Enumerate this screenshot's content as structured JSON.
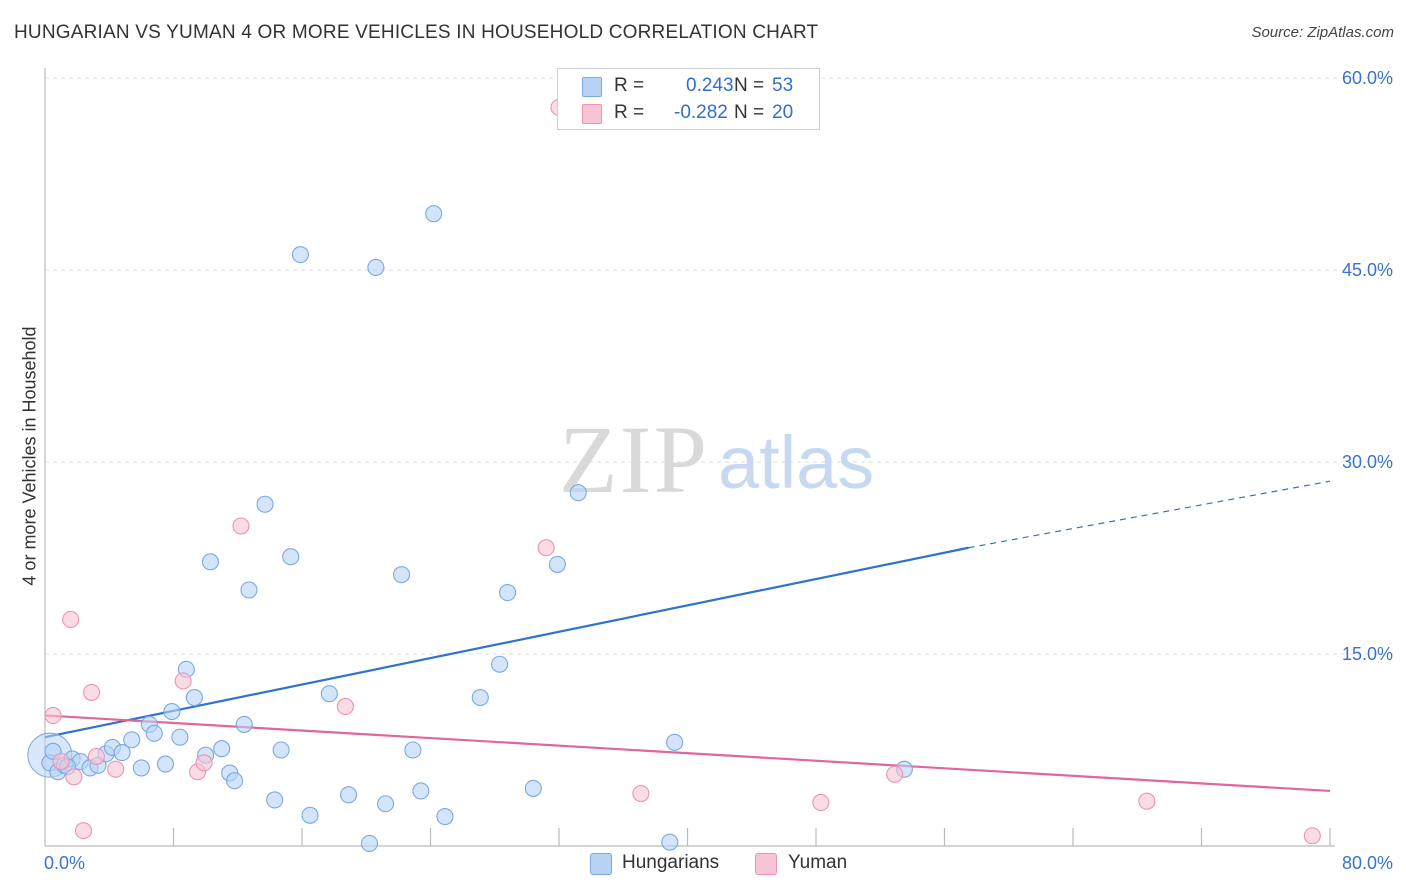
{
  "title": "HUNGARIAN VS YUMAN 4 OR MORE VEHICLES IN HOUSEHOLD CORRELATION CHART",
  "source": "Source: ZipAtlas.com",
  "watermark": {
    "zip": "ZIP",
    "atlas": "atlas"
  },
  "legend": {
    "r_label": "R =",
    "n_label": "N =",
    "hungarians": {
      "r": "0.243",
      "n": "53"
    },
    "yuman": {
      "r": "-0.282",
      "n": "20"
    }
  },
  "bottom_legend": {
    "hungarians": "Hungarians",
    "yuman": "Yuman"
  },
  "colors": {
    "blue_fill": "#b8d3f5",
    "blue_stroke": "#7aa8e6",
    "blue_line": "#2f73d0",
    "pink_fill": "#f7c4d4",
    "pink_stroke": "#ee93b0",
    "pink_line": "#e0679a",
    "tick_text": "#3a73cc",
    "grid": "#dddddd"
  },
  "chart_data": {
    "type": "scatter",
    "title": "HUNGARIAN VS YUMAN 4 OR MORE VEHICLES IN HOUSEHOLD CORRELATION CHART",
    "xlabel": "",
    "ylabel": "4 or more Vehicles in Household",
    "xlim": [
      0,
      80
    ],
    "ylim": [
      0,
      60
    ],
    "x_tick_labels": [
      "0.0%",
      "80.0%"
    ],
    "y_ticks": [
      15,
      30,
      45,
      60
    ],
    "y_tick_labels": [
      "15.0%",
      "30.0%",
      "45.0%",
      "60.0%"
    ],
    "grid": true,
    "series": [
      {
        "name": "Hungarians",
        "points": [
          [
            0.3,
            6.5
          ],
          [
            0.8,
            5.8
          ],
          [
            1.2,
            6.3
          ],
          [
            1.7,
            6.8
          ],
          [
            2.2,
            6.6
          ],
          [
            2.8,
            6.1
          ],
          [
            3.3,
            6.3
          ],
          [
            3.8,
            7.2
          ],
          [
            4.2,
            7.7
          ],
          [
            4.8,
            7.3
          ],
          [
            5.4,
            8.3
          ],
          [
            6.0,
            6.1
          ],
          [
            6.5,
            9.5
          ],
          [
            6.8,
            8.8
          ],
          [
            7.5,
            6.4
          ],
          [
            7.9,
            10.5
          ],
          [
            8.4,
            8.5
          ],
          [
            8.8,
            13.8
          ],
          [
            9.3,
            11.6
          ],
          [
            10.0,
            7.1
          ],
          [
            10.3,
            22.2
          ],
          [
            11.0,
            7.6
          ],
          [
            11.5,
            5.7
          ],
          [
            11.8,
            5.1
          ],
          [
            12.4,
            9.5
          ],
          [
            12.7,
            20.0
          ],
          [
            13.7,
            26.7
          ],
          [
            14.3,
            3.6
          ],
          [
            14.7,
            7.5
          ],
          [
            15.3,
            22.6
          ],
          [
            15.9,
            46.2
          ],
          [
            16.5,
            2.4
          ],
          [
            17.7,
            11.9
          ],
          [
            18.9,
            4.0
          ],
          [
            20.2,
            0.2
          ],
          [
            20.6,
            45.2
          ],
          [
            21.2,
            3.3
          ],
          [
            22.2,
            21.2
          ],
          [
            22.9,
            7.5
          ],
          [
            23.4,
            4.3
          ],
          [
            24.2,
            49.4
          ],
          [
            24.9,
            2.3
          ],
          [
            27.1,
            11.6
          ],
          [
            28.3,
            14.2
          ],
          [
            28.8,
            19.8
          ],
          [
            30.4,
            4.5
          ],
          [
            31.9,
            22.0
          ],
          [
            33.2,
            27.6
          ],
          [
            38.9,
            0.3
          ],
          [
            39.2,
            8.1
          ],
          [
            53.5,
            6.0
          ],
          [
            0.5,
            7.4
          ],
          [
            1.4,
            6.2
          ]
        ],
        "big_points": [
          [
            0.3,
            7.1
          ]
        ],
        "trend": {
          "x": [
            0,
            57.5
          ],
          "y": [
            8.5,
            23.3
          ]
        },
        "trend_ext": {
          "x": [
            57.5,
            80
          ],
          "y": [
            23.3,
            28.5
          ]
        }
      },
      {
        "name": "Yuman",
        "points": [
          [
            0.5,
            10.2
          ],
          [
            1.0,
            6.6
          ],
          [
            1.6,
            17.7
          ],
          [
            1.8,
            5.4
          ],
          [
            2.4,
            1.2
          ],
          [
            2.9,
            12.0
          ],
          [
            3.2,
            7.0
          ],
          [
            4.4,
            6.0
          ],
          [
            8.6,
            12.9
          ],
          [
            9.5,
            5.8
          ],
          [
            9.9,
            6.5
          ],
          [
            12.2,
            25.0
          ],
          [
            18.7,
            10.9
          ],
          [
            31.2,
            23.3
          ],
          [
            32.0,
            57.7
          ],
          [
            37.1,
            4.1
          ],
          [
            48.3,
            3.4
          ],
          [
            52.9,
            5.6
          ],
          [
            68.6,
            3.5
          ],
          [
            78.9,
            0.8
          ]
        ],
        "trend": {
          "x": [
            0,
            80
          ],
          "y": [
            10.2,
            4.3
          ]
        }
      }
    ]
  }
}
